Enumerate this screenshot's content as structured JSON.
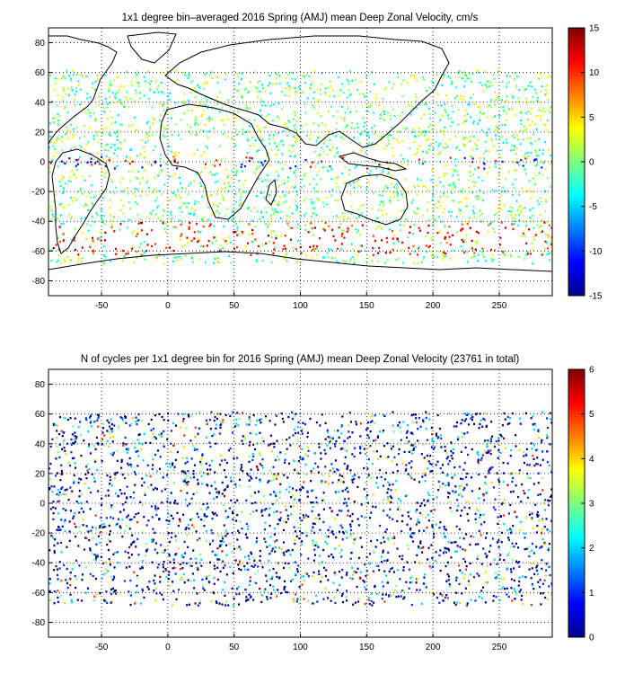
{
  "chart_data": [
    {
      "type": "heatmap",
      "title": "1x1 degree bin–averaged 2016 Spring (AMJ) mean Deep Zonal Velocity, cm/s",
      "xlabel": "",
      "ylabel": "",
      "xlim": [
        -90,
        290
      ],
      "ylim": [
        -90,
        90
      ],
      "x_ticks": [
        "-50",
        "0",
        "50",
        "100",
        "150",
        "200",
        "250"
      ],
      "y_ticks": [
        "80",
        "60",
        "40",
        "20",
        "0",
        "-20",
        "-40",
        "-60",
        "-80"
      ],
      "grid": true,
      "colorbar": {
        "min": -15,
        "max": 15,
        "ticks": [
          "15",
          "10",
          "5",
          "0",
          "-5",
          "-10",
          "-15"
        ],
        "colormap": "jet"
      }
    },
    {
      "type": "heatmap",
      "title": "N of cycles per 1x1 degree bin for 2016 Spring (AMJ) mean Deep Zonal Velocity (23761 in total)",
      "xlabel": "",
      "ylabel": "",
      "xlim": [
        -90,
        290
      ],
      "ylim": [
        -90,
        90
      ],
      "x_ticks": [
        "-50",
        "0",
        "50",
        "100",
        "150",
        "200",
        "250"
      ],
      "y_ticks": [
        "80",
        "60",
        "40",
        "20",
        "0",
        "-20",
        "-40",
        "-60",
        "-80"
      ],
      "grid": true,
      "colorbar": {
        "min": 0,
        "max": 6,
        "ticks": [
          "6",
          "5",
          "4",
          "3",
          "2",
          "1",
          "0"
        ],
        "colormap": "jet"
      }
    }
  ],
  "colors": {
    "land_outline": "#000000",
    "grid": "#000000",
    "background": "#ffffff"
  }
}
